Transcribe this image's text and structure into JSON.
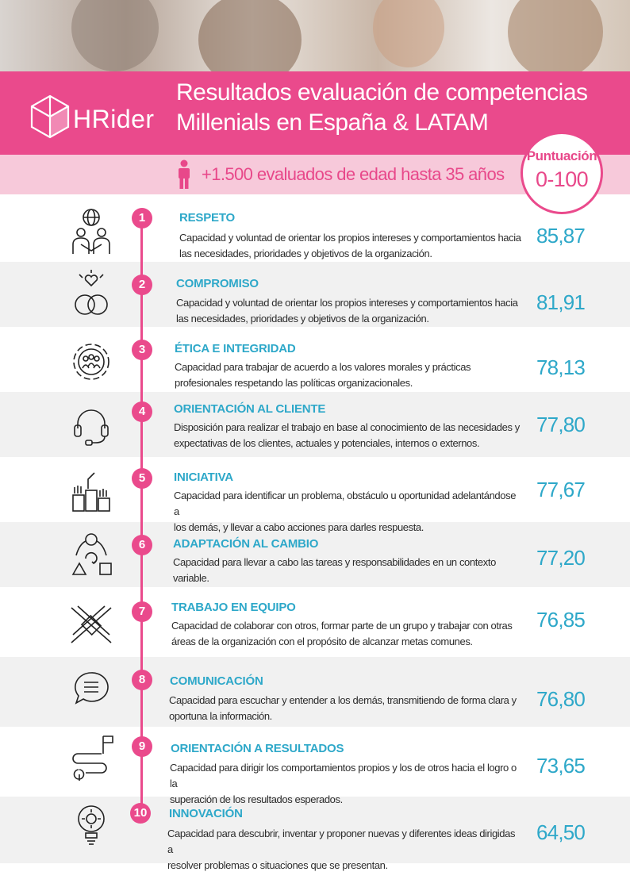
{
  "header": {
    "logo_text": "HRider",
    "title_line1": "Resultados evaluación de competencias",
    "title_line2": "Millenials en España & LATAM",
    "subtitle": "+1.500 evaluados de edad hasta 35 años",
    "badge_label": "Puntuación",
    "badge_range": "0-100"
  },
  "colors": {
    "brand_pink": "#ea4a8c",
    "accent_blue": "#2ea8c9",
    "light_pink": "#f7c9da"
  },
  "competencies": [
    {
      "number": "1",
      "title": "RESPETO",
      "icon": "people-globe-icon",
      "line1": "Capacidad y voluntad de orientar los propios intereses y comportamientos hacia",
      "line2": "las necesidades, prioridades y objetivos de la organización.",
      "score": "85,87"
    },
    {
      "number": "2",
      "title": "COMPROMISO",
      "icon": "rings-heart-icon",
      "line1": "Capacidad y voluntad de orientar los propios intereses y comportamientos hacia",
      "line2": "las necesidades, prioridades y objetivos de la organización.",
      "score": "81,91"
    },
    {
      "number": "3",
      "title": "ÉTICA E INTEGRIDAD",
      "icon": "gear-team-icon",
      "line1": "Capacidad para trabajar de acuerdo a los valores morales y prácticas",
      "line2": "profesionales respetando  las políticas organizacionales.",
      "score": "78,13"
    },
    {
      "number": "4",
      "title": "ORIENTACIÓN AL CLIENTE",
      "icon": "headset-icon",
      "line1": "Disposición para realizar el trabajo en base al conocimiento de las necesidades y",
      "line2": "expectativas de los clientes, actuales y potenciales, internos o externos.",
      "score": "77,80"
    },
    {
      "number": "5",
      "title": "INICIATIVA",
      "icon": "raised-hands-icon",
      "line1": "Capacidad para identificar un problema, obstáculo u oportunidad adelantándose a",
      "line2": "los demás, y llevar a cabo acciones para darles respuesta.",
      "score": "77,67"
    },
    {
      "number": "6",
      "title": "ADAPTACIÓN AL CAMBIO",
      "icon": "change-shapes-icon",
      "line1": "Capacidad para llevar a cabo las  tareas y responsabilidades en un contexto",
      "line2": "variable.",
      "score": "77,20"
    },
    {
      "number": "7",
      "title": "TRABAJO EN EQUIPO",
      "icon": "joined-hands-icon",
      "line1": "Capacidad de colaborar con otros, formar parte de un grupo y trabajar con otras",
      "line2": "áreas de la organización con el propósito de alcanzar metas comunes.",
      "score": "76,85"
    },
    {
      "number": "8",
      "title": "COMUNICACIÓN",
      "icon": "speech-bubble-icon",
      "line1": "Capacidad para escuchar y entender a los demás, transmitiendo de forma clara y",
      "line2": "oportuna la información.",
      "score": "76,80"
    },
    {
      "number": "9",
      "title": "ORIENTACIÓN A RESULTADOS",
      "icon": "route-flag-icon",
      "line1": "Capacidad para dirigir los comportamientos propios y los de otros hacia el logro o la",
      "line2": "superación de los resultados esperados.",
      "score": "73,65"
    },
    {
      "number": "10",
      "title": "INNOVACIÓN",
      "icon": "idea-bulb-gear-icon",
      "line1": "Capacidad para descubrir, inventar y proponer nuevas y diferentes ideas dirigidas a",
      "line2": "resolver problemas o situaciones que se presentan.",
      "score": "64,50"
    }
  ]
}
